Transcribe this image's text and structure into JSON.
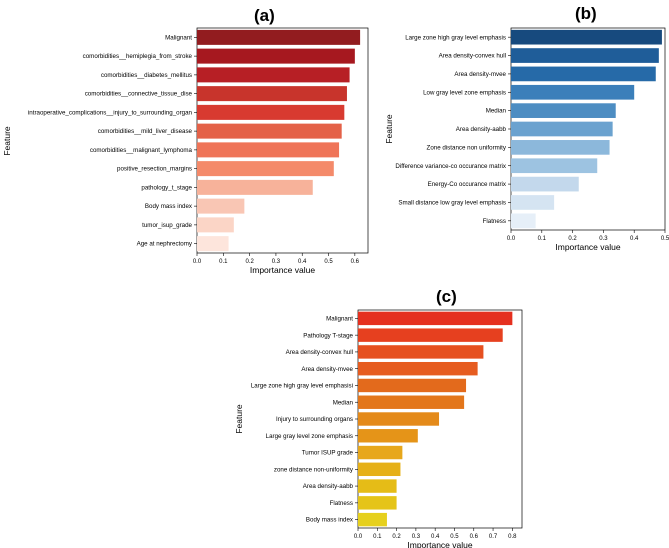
{
  "chart_data": [
    {
      "panel": "(a)",
      "type": "bar",
      "orientation": "horizontal",
      "xlabel": "Importance value",
      "ylabel": "Feature",
      "xlim": [
        0,
        0.65
      ],
      "xticks": [
        0.0,
        0.1,
        0.2,
        0.3,
        0.4,
        0.5,
        0.6
      ],
      "categories": [
        "Malignant",
        "comorbidities__hemiplegia_from_stroke",
        "comorbidities__diabetes_mellitus",
        "comorbidities__connective_tissue_dise",
        "intraoperative_complications__injury_to_surrounding_organ",
        "comorbidities__mild_liver_disease",
        "comorbidities__malignant_lymphoma",
        "positive_resection_margins",
        "pathology_t_stage",
        "Body mass index",
        "tumor_isup_grade",
        "Age at nephrectomy"
      ],
      "values": [
        0.62,
        0.6,
        0.58,
        0.57,
        0.56,
        0.55,
        0.54,
        0.52,
        0.44,
        0.18,
        0.14,
        0.12
      ],
      "colors": [
        "#921c1f",
        "#a6181f",
        "#b71f25",
        "#c8342c",
        "#d83a30",
        "#e46148",
        "#ef7458",
        "#f48a6a",
        "#f7b29a",
        "#f9c6b4",
        "#fbd5c6",
        "#fde5dc"
      ]
    },
    {
      "panel": "(b)",
      "type": "bar",
      "orientation": "horizontal",
      "xlabel": "Importance value",
      "ylabel": "Feature",
      "xlim": [
        0,
        0.5
      ],
      "xticks": [
        0.0,
        0.1,
        0.2,
        0.3,
        0.4,
        0.5
      ],
      "categories": [
        "Large zone high gray level emphasis",
        "Area density-convex hull",
        "Area density-mvee",
        "Low gray level zone emphasis",
        "Median",
        "Area density-aabb",
        "Zone distance non uniformity",
        "Difference variance-co occurance matrix",
        "Energy-Co occurance matrix",
        "Small distance low gray level emphasis",
        "Flatness"
      ],
      "values": [
        0.49,
        0.48,
        0.47,
        0.4,
        0.34,
        0.33,
        0.32,
        0.28,
        0.22,
        0.14,
        0.08
      ],
      "colors": [
        "#174a7e",
        "#1f5d99",
        "#266aa8",
        "#3b7fba",
        "#4d8dc2",
        "#6ba2cf",
        "#8cb8db",
        "#9dc3e1",
        "#c3d8ec",
        "#d5e4f2",
        "#e6eff8"
      ]
    },
    {
      "panel": "(c)",
      "type": "bar",
      "orientation": "horizontal",
      "xlabel": "Importance value",
      "ylabel": "Feature",
      "xlim": [
        0,
        0.85
      ],
      "xticks": [
        0.0,
        0.1,
        0.2,
        0.3,
        0.4,
        0.5,
        0.6,
        0.7,
        0.8
      ],
      "categories": [
        "Malignant",
        "Pathology T-stage",
        "Area density-convex hull",
        "Area density-mvee",
        "Large zone high gray level emphasisi",
        "Median",
        "Injury to surrounding organs",
        "Large gray level zone emphasis",
        "Tumor ISUP grade",
        "zone distance non-uniformity",
        "Area density-aabb",
        "Flatness",
        "Body mass index"
      ],
      "values": [
        0.8,
        0.75,
        0.65,
        0.62,
        0.56,
        0.55,
        0.42,
        0.31,
        0.23,
        0.22,
        0.2,
        0.2,
        0.15
      ],
      "colors": [
        "#e5301f",
        "#e6401f",
        "#e65020",
        "#e65c20",
        "#e36a1c",
        "#e3761a",
        "#e48a1a",
        "#e59418",
        "#e7a71b",
        "#e6b017",
        "#e5bc17",
        "#e5c418",
        "#e6d01d"
      ]
    }
  ]
}
